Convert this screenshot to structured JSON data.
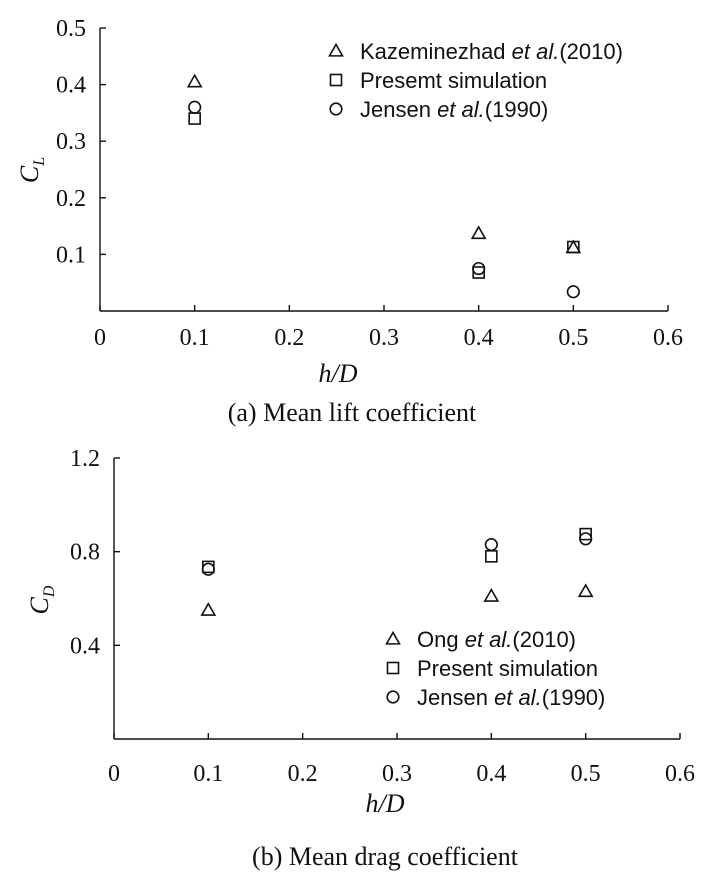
{
  "chart_data": [
    {
      "type": "scatter",
      "xlabel": "h/D",
      "ylabel": "C_L",
      "ylabel_main": "C",
      "ylabel_sub": "L",
      "xlim": [
        0,
        0.6
      ],
      "ylim": [
        0,
        0.5
      ],
      "xticks": [
        0,
        0.1,
        0.2,
        0.3,
        0.4,
        0.5,
        0.6
      ],
      "xtick_labels": [
        "0",
        "0.1",
        "0.2",
        "0.3",
        "0.4",
        "0.5",
        "0.6"
      ],
      "yticks": [
        0.1,
        0.2,
        0.3,
        0.4,
        0.5
      ],
      "ytick_labels": [
        "0.1",
        "0.2",
        "0.3",
        "0.4",
        "0.5"
      ],
      "legend_position": "top-right",
      "caption": "(a) Mean lift coefficient",
      "series": [
        {
          "name": "Kazeminezhad et al.(2010)",
          "legend_plain": "Kazeminezhad ",
          "legend_italic": "et al.",
          "legend_rest": "(2010)",
          "marker": "triangle",
          "x": [
            0.1,
            0.4,
            0.5
          ],
          "y": [
            0.405,
            0.137,
            0.112
          ]
        },
        {
          "name": "Presemt simulation",
          "legend_plain": "Presemt simulation",
          "legend_italic": "",
          "legend_rest": "",
          "marker": "square",
          "x": [
            0.1,
            0.4,
            0.5
          ],
          "y": [
            0.34,
            0.068,
            0.113
          ]
        },
        {
          "name": "Jensen et al.(1990)",
          "legend_plain": "Jensen ",
          "legend_italic": "et al.",
          "legend_rest": "(1990)",
          "marker": "circle",
          "x": [
            0.1,
            0.4,
            0.5
          ],
          "y": [
            0.36,
            0.075,
            0.034
          ]
        }
      ]
    },
    {
      "type": "scatter",
      "xlabel": "h/D",
      "ylabel": "C_D",
      "ylabel_main": "C",
      "ylabel_sub": "D",
      "xlim": [
        0,
        0.6
      ],
      "ylim": [
        0,
        1.2
      ],
      "xticks": [
        0,
        0.1,
        0.2,
        0.3,
        0.4,
        0.5,
        0.6
      ],
      "xtick_labels": [
        "0",
        "0.1",
        "0.2",
        "0.3",
        "0.4",
        "0.5",
        "0.6"
      ],
      "yticks": [
        0.4,
        0.8,
        1.2
      ],
      "ytick_labels": [
        "0.4",
        "0.8",
        "1.2"
      ],
      "legend_position": "bottom-right",
      "caption": "(b) Mean drag coefficient",
      "series": [
        {
          "name": "Ong et al.(2010)",
          "legend_plain": "Ong ",
          "legend_italic": "et al.",
          "legend_rest": "(2010)",
          "marker": "triangle",
          "x": [
            0.1,
            0.4,
            0.5
          ],
          "y": [
            0.55,
            0.61,
            0.63
          ]
        },
        {
          "name": "Present simulation",
          "legend_plain": "Present simulation",
          "legend_italic": "",
          "legend_rest": "",
          "marker": "square",
          "x": [
            0.1,
            0.4,
            0.5
          ],
          "y": [
            0.735,
            0.78,
            0.875
          ]
        },
        {
          "name": "Jensen et al.(1990)",
          "legend_plain": "Jensen ",
          "legend_italic": "et al.",
          "legend_rest": "(1990)",
          "marker": "circle",
          "x": [
            0.1,
            0.4,
            0.5
          ],
          "y": [
            0.725,
            0.83,
            0.855
          ]
        }
      ]
    }
  ]
}
